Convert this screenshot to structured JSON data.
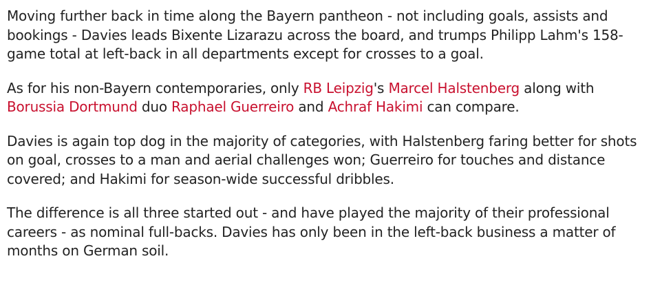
{
  "article": {
    "p1": "Moving further back in time along the Bayern pantheon - not including goals, assists and bookings - Davies leads Bixente Lizarazu across the board, and trumps Philipp Lahm's 158-game total at left-back in all departments except for crosses to a goal.",
    "p2": {
      "t1": "As for his non-Bayern contemporaries, only ",
      "link_rb_leipzig": "RB Leipzig",
      "t2": "'s ",
      "link_halstenberg": "Marcel Halstenberg",
      "t3": " along with ",
      "link_dortmund": "Borussia Dortmund",
      "t4": " duo ",
      "link_guerreiro": "Raphael Guerreiro",
      "t5": " and ",
      "link_hakimi": "Achraf Hakimi",
      "t6": " can compare."
    },
    "p3": "Davies is again top dog in the majority of categories, with Halstenberg faring better for shots on goal, crosses to a man and aerial challenges won; Guerreiro for touches and distance covered; and Hakimi for season-wide successful dribbles.",
    "p4": "The difference is all three started out - and have played the majority of their professional careers - as nominal full-backs. Davies has only been in the left-back business a matter of months on German soil."
  },
  "colors": {
    "text": "#222222",
    "link": "#c8102e"
  }
}
